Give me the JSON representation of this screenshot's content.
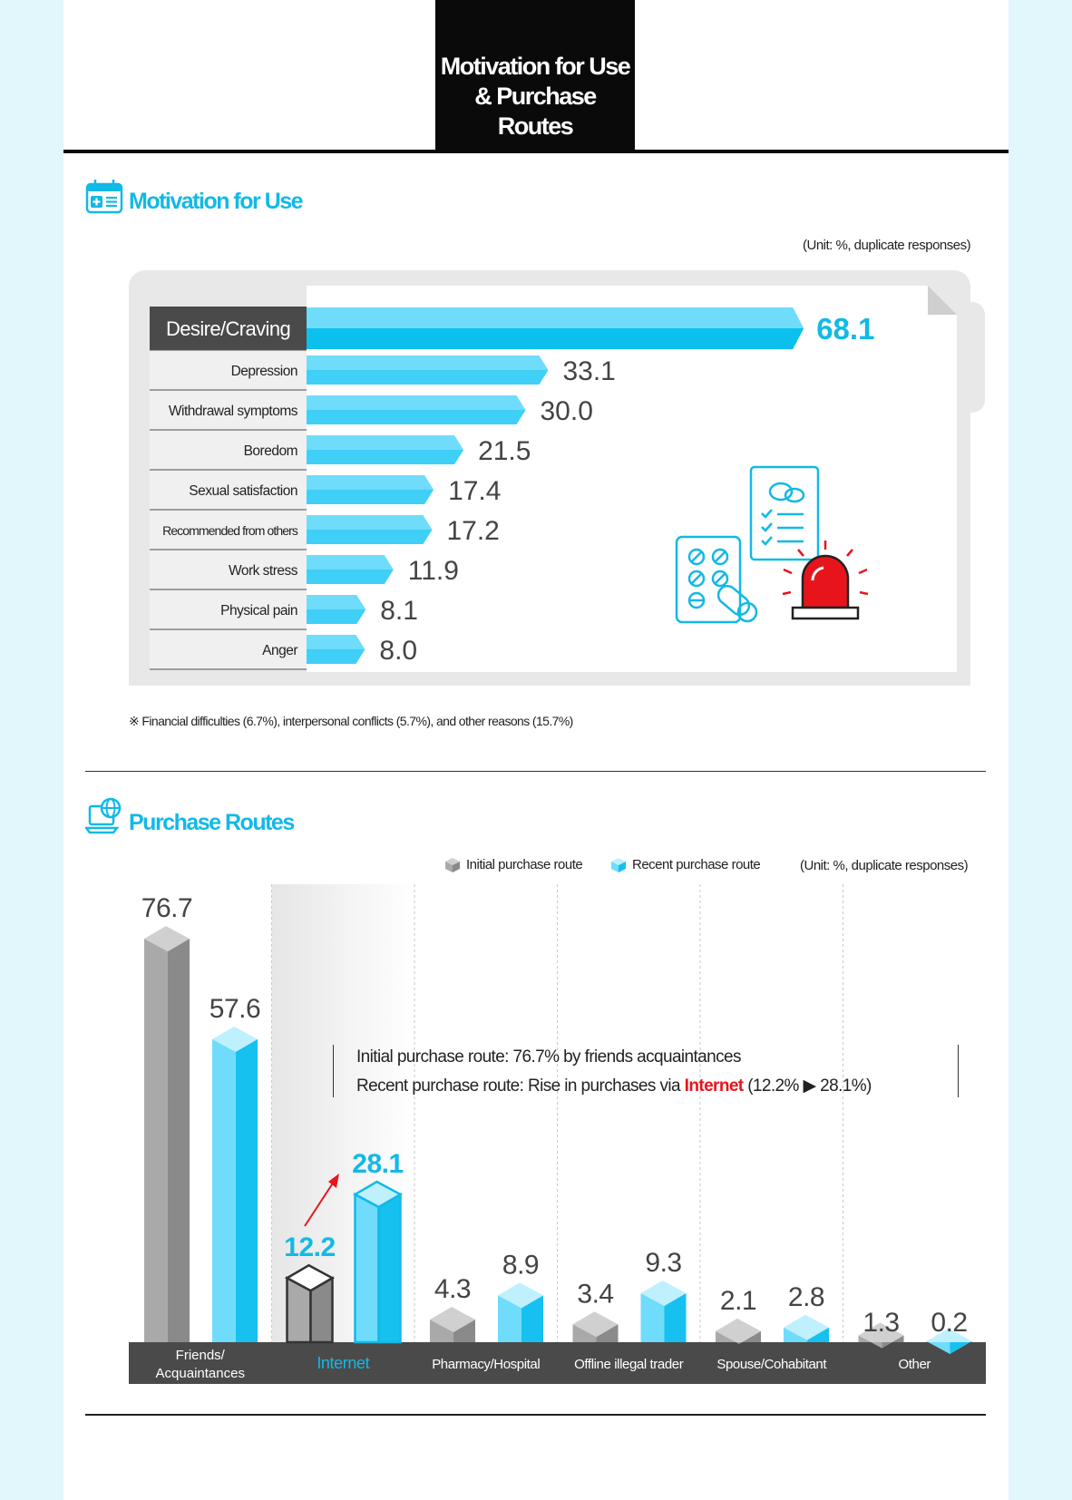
{
  "header": {
    "title_line1": "Motivation for Use",
    "title_line2": "& Purchase Routes"
  },
  "motivation": {
    "section_title": "Motivation for Use",
    "unit": "(Unit: %, duplicate responses)",
    "footnote": "※ Financial difficulties (6.7%), interpersonal conflicts (5.7%), and other reasons (15.7%)"
  },
  "purchase": {
    "section_title": "Purchase Routes",
    "unit": "(Unit: %, duplicate responses)",
    "legend": {
      "initial": "Initial purchase route",
      "recent": "Recent purchase route"
    },
    "callout": {
      "line1": "Initial purchase route: 76.7% by friends acquaintances",
      "line2_prefix": "Recent purchase route:  Rise in purchases via ",
      "line2_highlight": "Internet",
      "line2_suffix": " (12.2% ▶ 28.1%)"
    }
  },
  "colors": {
    "accent": "#12b9e6",
    "bar_light": "#6fdcfb",
    "gray_bar": "#a9a9a9",
    "category_band": "#4a4a4a",
    "highlight_red": "#e8141c"
  },
  "icons": [
    "medical-kit-icon",
    "laptop-globe-icon",
    "pill-pack-icon",
    "checklist-icon",
    "siren-icon"
  ],
  "chart_data": [
    {
      "type": "bar",
      "orientation": "horizontal",
      "categories": [
        "Desire/Craving",
        "Depression",
        "Withdrawal symptoms",
        "Boredom",
        "Sexual satisfaction",
        "Recommended from others",
        "Work stress",
        "Physical pain",
        "Anger"
      ],
      "values": [
        68.1,
        33.1,
        30.0,
        21.5,
        17.4,
        17.2,
        11.9,
        8.1,
        8.0
      ],
      "value_labels": [
        "68.1",
        "33.1",
        "30.0",
        "21.5",
        "17.4",
        "17.2",
        "11.9",
        "8.1",
        "8.0"
      ],
      "title": "Motivation for Use"
    },
    {
      "type": "bar",
      "categories": [
        "Friends/ Acquaintances",
        "Internet",
        "Pharmacy/Hospital",
        "Offline illegal trader",
        "Spouse/Cohabitant",
        "Other"
      ],
      "series": [
        {
          "name": "Initial purchase route",
          "values": [
            76.7,
            12.2,
            4.3,
            3.4,
            2.1,
            1.3
          ],
          "labels": [
            "76.7",
            "12.2",
            "4.3",
            "3.4",
            "2.1",
            "1.3"
          ]
        },
        {
          "name": "Recent purchase route",
          "values": [
            57.6,
            28.1,
            8.9,
            9.3,
            2.8,
            0.2
          ],
          "labels": [
            "57.6",
            "28.1",
            "8.9",
            "9.3",
            "2.8",
            "0.2"
          ]
        }
      ],
      "title": "Purchase Routes",
      "legend": "top-right"
    }
  ]
}
